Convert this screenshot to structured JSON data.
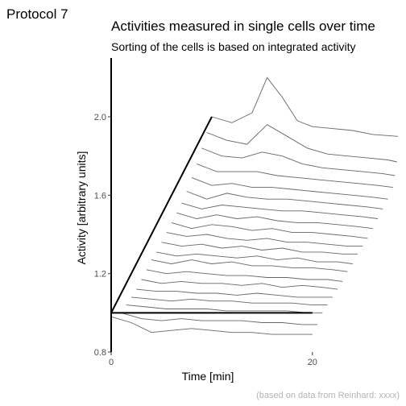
{
  "protocol_label": "Protocol 7",
  "caption": "(based on data from Reinhard: xxxx)",
  "chart_data": {
    "type": "line",
    "title": "Activities measured in single cells over time",
    "subtitle": "Sorting of the cells is based on integrated activity",
    "xlabel": "Time [min]",
    "ylabel": "Activity [arbitrary units]",
    "xlim": [
      0,
      28.5
    ],
    "ylim": [
      0.8,
      2.3
    ],
    "x_ticks": [
      0,
      20
    ],
    "x_tick_labels": [
      "0",
      "20"
    ],
    "y_ticks": [
      0.8,
      1.2,
      1.6,
      2.0
    ],
    "y_tick_labels": [
      "0.8",
      "1.2",
      "1.6",
      "2.0"
    ],
    "grid": false,
    "line_color": "#666666",
    "axis_color": "#000000",
    "reference_lines": [
      {
        "x": [
          0,
          20
        ],
        "y": [
          1.0,
          1.0
        ]
      },
      {
        "x": [
          0,
          10
        ],
        "y": [
          1.0,
          2.0
        ]
      }
    ],
    "series": [
      {
        "x": [
          0,
          2,
          4,
          6,
          8,
          10,
          12,
          14,
          16,
          18,
          20
        ],
        "y": [
          0.98,
          0.95,
          0.9,
          0.91,
          0.92,
          0.91,
          0.9,
          0.9,
          0.89,
          0.89,
          0.89
        ]
      },
      {
        "x": [
          1,
          3,
          5,
          7,
          9,
          11,
          13,
          15,
          17,
          19,
          20.5
        ],
        "y": [
          1.0,
          0.97,
          0.96,
          0.97,
          0.96,
          0.96,
          0.96,
          0.95,
          0.95,
          0.94,
          0.94
        ]
      },
      {
        "x": [
          1.5,
          3.5,
          5.5,
          7.5,
          9.5,
          11.5,
          13.5,
          15.5,
          17.5,
          19.5,
          21
        ],
        "y": [
          1.04,
          1.03,
          1.02,
          1.02,
          1.02,
          1.01,
          1.01,
          1.01,
          1.01,
          1.0,
          1.0
        ]
      },
      {
        "x": [
          2,
          4,
          6,
          8,
          10,
          12,
          14,
          16,
          18,
          20,
          21.5
        ],
        "y": [
          1.08,
          1.07,
          1.06,
          1.07,
          1.06,
          1.06,
          1.05,
          1.05,
          1.05,
          1.04,
          1.04
        ]
      },
      {
        "x": [
          2.5,
          4.5,
          6.5,
          8.5,
          10.5,
          12.5,
          14.5,
          16.5,
          18.5,
          20.5,
          22
        ],
        "y": [
          1.12,
          1.11,
          1.11,
          1.1,
          1.1,
          1.09,
          1.1,
          1.09,
          1.08,
          1.08,
          1.08
        ]
      },
      {
        "x": [
          3,
          5,
          7,
          9,
          11,
          13,
          15,
          17,
          19,
          21,
          22.5
        ],
        "y": [
          1.17,
          1.15,
          1.16,
          1.15,
          1.15,
          1.14,
          1.15,
          1.13,
          1.14,
          1.13,
          1.12
        ]
      },
      {
        "x": [
          3.5,
          5.5,
          7.5,
          9.5,
          11.5,
          13.5,
          15.5,
          17.5,
          19.5,
          21.5,
          23
        ],
        "y": [
          1.22,
          1.2,
          1.21,
          1.2,
          1.19,
          1.19,
          1.18,
          1.18,
          1.17,
          1.17,
          1.16
        ]
      },
      {
        "x": [
          4,
          6,
          8,
          10,
          12,
          14,
          16,
          18,
          20,
          22,
          23.5
        ],
        "y": [
          1.27,
          1.25,
          1.27,
          1.25,
          1.26,
          1.24,
          1.24,
          1.23,
          1.23,
          1.22,
          1.21
        ]
      },
      {
        "x": [
          4.5,
          6.5,
          8.5,
          10.5,
          12.5,
          14.5,
          16.5,
          18.5,
          20.5,
          22.5,
          24
        ],
        "y": [
          1.31,
          1.29,
          1.3,
          1.29,
          1.28,
          1.29,
          1.27,
          1.28,
          1.26,
          1.26,
          1.25
        ]
      },
      {
        "x": [
          5,
          7,
          9,
          11,
          13,
          15,
          17,
          19,
          21,
          23,
          24.5
        ],
        "y": [
          1.36,
          1.34,
          1.35,
          1.33,
          1.34,
          1.32,
          1.33,
          1.31,
          1.31,
          1.3,
          1.3
        ]
      },
      {
        "x": [
          5.5,
          7.5,
          9.5,
          11.5,
          13.5,
          15.5,
          17.5,
          19.5,
          21.5,
          23.5,
          25
        ],
        "y": [
          1.41,
          1.39,
          1.4,
          1.38,
          1.37,
          1.38,
          1.36,
          1.36,
          1.35,
          1.34,
          1.34
        ]
      },
      {
        "x": [
          6,
          8,
          10,
          12,
          14,
          16,
          18,
          20,
          22,
          24,
          25.5
        ],
        "y": [
          1.46,
          1.43,
          1.45,
          1.44,
          1.42,
          1.43,
          1.41,
          1.41,
          1.4,
          1.39,
          1.38
        ]
      },
      {
        "x": [
          6.5,
          8.5,
          10.5,
          12.5,
          14.5,
          16.5,
          18.5,
          20.5,
          22.5,
          24.5,
          26
        ],
        "y": [
          1.51,
          1.48,
          1.5,
          1.48,
          1.49,
          1.47,
          1.46,
          1.46,
          1.45,
          1.44,
          1.43
        ]
      },
      {
        "x": [
          7,
          9,
          11,
          13,
          15,
          17,
          19,
          21,
          23,
          25,
          26.5
        ],
        "y": [
          1.56,
          1.53,
          1.55,
          1.54,
          1.53,
          1.52,
          1.52,
          1.51,
          1.5,
          1.49,
          1.48
        ]
      },
      {
        "x": [
          7.5,
          9.5,
          11.5,
          13.5,
          15.5,
          17.5,
          19.5,
          21.5,
          23.5,
          25.5,
          27
        ],
        "y": [
          1.62,
          1.58,
          1.61,
          1.59,
          1.58,
          1.58,
          1.57,
          1.56,
          1.55,
          1.54,
          1.53
        ]
      },
      {
        "x": [
          8,
          10,
          12,
          14,
          16,
          18,
          20,
          22,
          24,
          26,
          27.5
        ],
        "y": [
          1.69,
          1.65,
          1.66,
          1.64,
          1.64,
          1.63,
          1.62,
          1.61,
          1.6,
          1.59,
          1.58
        ]
      },
      {
        "x": [
          8.5,
          10.5,
          12.5,
          14.5,
          16.5,
          18.5,
          20.5,
          22.5,
          24.5,
          26.5,
          28
        ],
        "y": [
          1.76,
          1.72,
          1.72,
          1.72,
          1.7,
          1.69,
          1.68,
          1.67,
          1.66,
          1.65,
          1.64
        ]
      },
      {
        "x": [
          9,
          11,
          13,
          15,
          17,
          19,
          21,
          23,
          25,
          27,
          28.2
        ],
        "y": [
          1.84,
          1.8,
          1.79,
          1.82,
          1.8,
          1.76,
          1.74,
          1.73,
          1.72,
          1.71,
          1.7
        ]
      },
      {
        "x": [
          9.5,
          11.5,
          13.5,
          15.5,
          17.5,
          19.5,
          21.5,
          23.5,
          25.5,
          27.5,
          28.4
        ],
        "y": [
          1.92,
          1.88,
          1.86,
          1.96,
          1.9,
          1.84,
          1.81,
          1.8,
          1.79,
          1.78,
          1.77
        ]
      },
      {
        "x": [
          10,
          12,
          14,
          15.5,
          17,
          18.5,
          20,
          22,
          24,
          26,
          28.5
        ],
        "y": [
          2.0,
          1.97,
          2.02,
          2.2,
          2.1,
          1.98,
          1.95,
          1.94,
          1.93,
          1.91,
          1.9
        ]
      }
    ]
  }
}
